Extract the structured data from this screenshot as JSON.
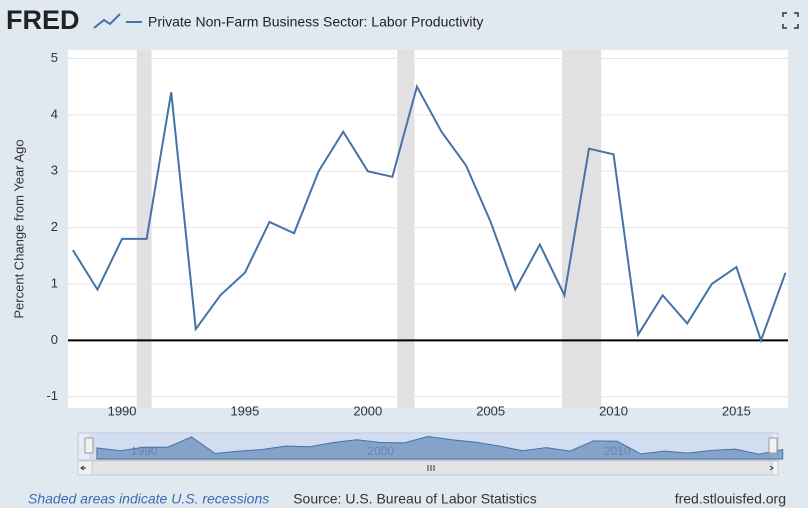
{
  "chart_data": {
    "type": "line",
    "logo": "FRED",
    "title": "Private Non-Farm Business Sector: Labor Productivity",
    "y_label": "Percent Change from Year Ago",
    "x": [
      1988,
      1989,
      1990,
      1991,
      1992,
      1993,
      1994,
      1995,
      1996,
      1997,
      1998,
      1999,
      2000,
      2001,
      2002,
      2003,
      2004,
      2005,
      2006,
      2007,
      2008,
      2009,
      2010,
      2011,
      2012,
      2013,
      2014,
      2015,
      2016,
      2017
    ],
    "series": [
      {
        "name": "Private Non-Farm Business Sector: Labor Productivity",
        "color": "#4572a7",
        "values": [
          1.6,
          0.9,
          1.8,
          1.8,
          4.4,
          0.2,
          0.8,
          1.2,
          2.1,
          1.9,
          3.0,
          3.7,
          3.0,
          2.9,
          4.5,
          3.7,
          3.1,
          2.1,
          0.9,
          1.7,
          0.8,
          3.4,
          3.3,
          0.1,
          0.8,
          0.3,
          1.0,
          1.3,
          0.0,
          1.2
        ]
      }
    ],
    "recessions": [
      [
        1990.6,
        1991.2
      ],
      [
        2001.2,
        2001.9
      ],
      [
        2007.9,
        2009.5
      ]
    ],
    "recession_color": "#e1e1e1",
    "xlim": [
      1987.8,
      2017.1
    ],
    "xticks": [
      1990,
      1995,
      2000,
      2005,
      2010,
      2015
    ],
    "ylim": [
      -1.2,
      5.15
    ],
    "yticks": [
      -1,
      0,
      1,
      2,
      3,
      4,
      5
    ],
    "grid": true,
    "navigator": {
      "xlim": [
        1987.2,
        2016.8
      ],
      "xticks": [
        1990,
        2000,
        2010
      ]
    },
    "footer": {
      "left": "Shaded areas indicate U.S. recessions",
      "center": "Source: U.S. Bureau of Labor Statistics",
      "right": "fred.stlouisfed.org"
    }
  }
}
